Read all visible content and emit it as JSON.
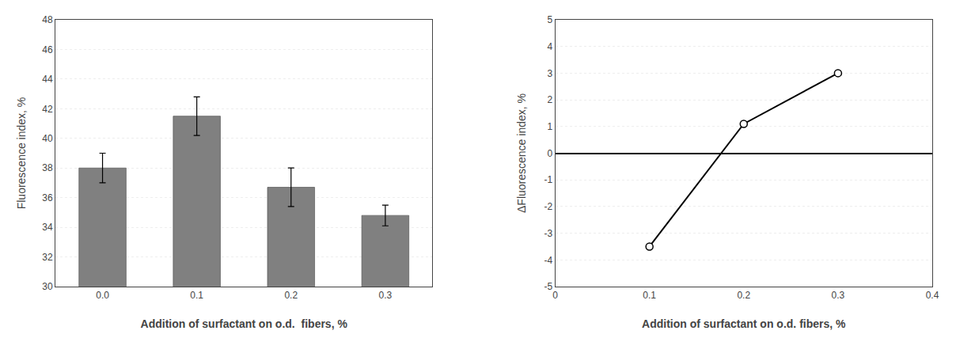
{
  "chart_data": [
    {
      "type": "bar",
      "categories": [
        "0.0",
        "0.1",
        "0.2",
        "0.3"
      ],
      "values": [
        38.0,
        41.5,
        36.7,
        34.8
      ],
      "errors": [
        1.0,
        1.3,
        1.3,
        0.7
      ],
      "color": "#808080",
      "xlabel": "Addition of surfactant on o.d.  fibers, %",
      "ylabel": "Fluorescence index, %",
      "ylim": [
        30,
        48
      ],
      "yticks": [
        30,
        32,
        34,
        36,
        38,
        40,
        42,
        44,
        46,
        48
      ],
      "grid": true
    },
    {
      "type": "line",
      "x": [
        0.1,
        0.2,
        0.3
      ],
      "values": [
        -3.5,
        1.1,
        3.0
      ],
      "color": "#000000",
      "marker": "circle",
      "xlabel": "Addition of surfactant on o.d. fibers, %",
      "ylabel": "ΔFluorescence index, %",
      "xlim": [
        0,
        0.4
      ],
      "xticks": [
        0,
        0.1,
        0.2,
        0.3,
        0.4
      ],
      "ylim": [
        -5,
        5
      ],
      "yticks": [
        -5,
        -4,
        -3,
        -2,
        -1,
        0,
        1,
        2,
        3,
        4,
        5
      ],
      "grid": true
    }
  ]
}
